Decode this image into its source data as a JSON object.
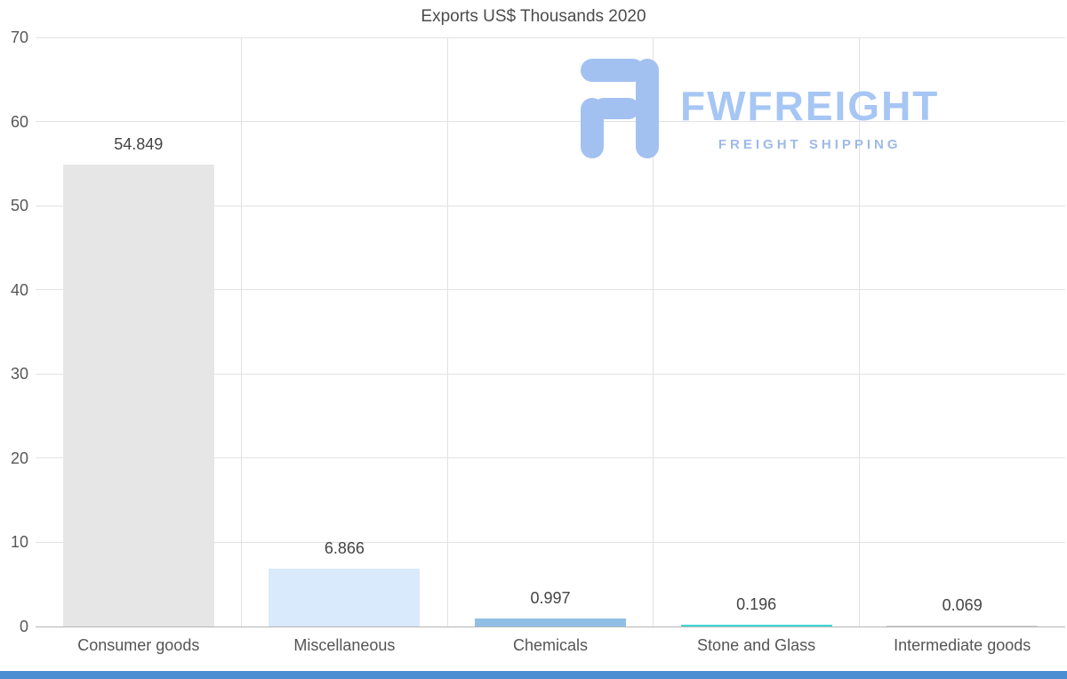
{
  "watermark": {
    "brand": "FWFREIGHT",
    "tagline": "FREIGHT SHIPPING"
  },
  "colors": {
    "watermark_icon": "#a3c1f0",
    "watermark_brand": "#a6c6f4",
    "watermark_tagline": "#9db9ea",
    "bottom_strip": "#4b8fd2",
    "grid": "#e2e2e2",
    "axis_line": "#b5b5b5",
    "title_text": "#4c4c4c",
    "label_text": "#555555"
  },
  "chart_data": {
    "type": "bar",
    "title": "Exports US$ Thousands 2020",
    "categories": [
      "Consumer goods",
      "Miscellaneous",
      "Chemicals",
      "Stone and Glass",
      "Intermediate goods"
    ],
    "values": [
      54.849,
      6.866,
      0.997,
      0.196,
      0.069
    ],
    "value_labels": [
      "54.849",
      "6.866",
      "0.997",
      "0.196",
      "0.069"
    ],
    "bar_colors": [
      "#e6e6e6",
      "#d8eafb",
      "#90bfe6",
      "#3fd8d8",
      "#d0d0d0"
    ],
    "ylim": [
      0,
      70
    ],
    "yticks": [
      0,
      10,
      20,
      30,
      40,
      50,
      60,
      70
    ],
    "xlabel": "",
    "ylabel": "",
    "grid": true,
    "legend": false
  }
}
